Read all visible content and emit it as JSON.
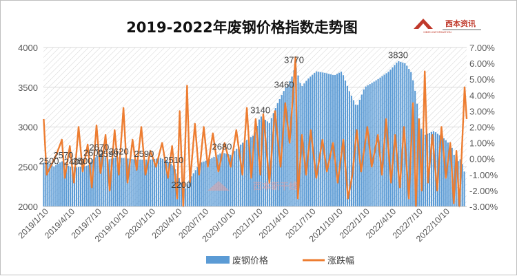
{
  "chart_data": {
    "type": "bar+line",
    "title": "2019-2022年废钢价格指数走势图",
    "y_left": {
      "ylim": [
        2000,
        4000
      ],
      "ticks": [
        2000,
        2500,
        3000,
        3500,
        4000
      ],
      "tick_labels": [
        "2000",
        "2500",
        "3000",
        "3500",
        "4000"
      ]
    },
    "y_right": {
      "ylim": [
        -3.0,
        7.0
      ],
      "ticks": [
        -3,
        -2,
        -1,
        0,
        1,
        2,
        3,
        4,
        5,
        6,
        7
      ],
      "tick_labels": [
        "-3.00%",
        "-2.00%",
        "-1.00%",
        "0.00%",
        "1.00%",
        "2.00%",
        "3.00%",
        "4.00%",
        "5.00%",
        "6.00%",
        "7.00%"
      ]
    },
    "x_range": [
      "2019-01-01",
      "2022-12-15"
    ],
    "x_tick_labels": [
      "2019/1/10",
      "2019/4/10",
      "2019/7/10",
      "2019/10/10",
      "2020/1/10",
      "2020/4/10",
      "2020/7/10",
      "2020/10/10",
      "2021/1/10",
      "2021/4/10",
      "2021/7/10",
      "2021/10/10",
      "2022/1/10",
      "2022/4/10",
      "2022/7/10",
      "2022/10/10"
    ],
    "series": [
      {
        "name": "废钢价格",
        "type": "bar",
        "color": "#5b9bd5",
        "points": [
          [
            "2019-01-02",
            2550
          ],
          [
            "2019-01-15",
            2560
          ],
          [
            "2019-02-05",
            2500
          ],
          [
            "2019-03-05",
            2570
          ],
          [
            "2019-04-01",
            2500
          ],
          [
            "2019-04-20",
            2490
          ],
          [
            "2019-05-15",
            2500
          ],
          [
            "2019-06-05",
            2520
          ],
          [
            "2019-06-20",
            2600
          ],
          [
            "2019-07-15",
            2670
          ],
          [
            "2019-08-10",
            2590
          ],
          [
            "2019-09-05",
            2620
          ],
          [
            "2019-10-01",
            2610
          ],
          [
            "2019-11-15",
            2590
          ],
          [
            "2020-01-01",
            2590
          ],
          [
            "2020-02-05",
            2610
          ],
          [
            "2020-02-25",
            2580
          ],
          [
            "2020-03-20",
            2510
          ],
          [
            "2020-04-15",
            2300
          ],
          [
            "2020-04-25",
            2200
          ],
          [
            "2020-05-20",
            2380
          ],
          [
            "2020-06-20",
            2550
          ],
          [
            "2020-07-25",
            2600
          ],
          [
            "2020-09-01",
            2680
          ],
          [
            "2020-10-01",
            2650
          ],
          [
            "2020-11-10",
            2800
          ],
          [
            "2020-12-20",
            2900
          ],
          [
            "2021-01-10",
            3140
          ],
          [
            "2021-02-10",
            3050
          ],
          [
            "2021-03-10",
            3300
          ],
          [
            "2021-04-01",
            3460
          ],
          [
            "2021-04-25",
            3600
          ],
          [
            "2021-05-10",
            3770
          ],
          [
            "2021-05-30",
            3500
          ],
          [
            "2021-06-20",
            3600
          ],
          [
            "2021-07-20",
            3700
          ],
          [
            "2021-08-20",
            3680
          ],
          [
            "2021-09-20",
            3650
          ],
          [
            "2021-10-15",
            3700
          ],
          [
            "2021-11-10",
            3450
          ],
          [
            "2021-12-05",
            3250
          ],
          [
            "2022-01-01",
            3500
          ],
          [
            "2022-02-15",
            3600
          ],
          [
            "2022-03-25",
            3700
          ],
          [
            "2022-04-25",
            3830
          ],
          [
            "2022-05-20",
            3800
          ],
          [
            "2022-06-10",
            3680
          ],
          [
            "2022-06-25",
            3400
          ],
          [
            "2022-07-10",
            3000
          ],
          [
            "2022-07-25",
            2900
          ],
          [
            "2022-08-25",
            2950
          ],
          [
            "2022-10-01",
            2850
          ],
          [
            "2022-10-25",
            2750
          ],
          [
            "2022-11-10",
            2550
          ],
          [
            "2022-11-25",
            2600
          ],
          [
            "2022-12-10",
            2400
          ]
        ]
      },
      {
        "name": "涨跌幅",
        "type": "line",
        "color": "#ed7d31",
        "points": [
          [
            "2019-01-02",
            2.5
          ],
          [
            "2019-01-12",
            -1.0
          ],
          [
            "2019-02-15",
            0.3
          ],
          [
            "2019-03-05",
            1.2
          ],
          [
            "2019-03-15",
            -1.2
          ],
          [
            "2019-04-01",
            0.8
          ],
          [
            "2019-04-15",
            -1.5
          ],
          [
            "2019-05-01",
            2.0
          ],
          [
            "2019-05-15",
            -0.8
          ],
          [
            "2019-06-01",
            0.9
          ],
          [
            "2019-06-15",
            -1.8
          ],
          [
            "2019-07-01",
            2.1
          ],
          [
            "2019-07-15",
            -0.9
          ],
          [
            "2019-08-01",
            1.5
          ],
          [
            "2019-08-15",
            -2.0
          ],
          [
            "2019-09-01",
            1.8
          ],
          [
            "2019-09-15",
            -1.0
          ],
          [
            "2019-10-01",
            3.2
          ],
          [
            "2019-10-15",
            -1.5
          ],
          [
            "2019-11-01",
            1.2
          ],
          [
            "2019-11-15",
            -0.7
          ],
          [
            "2019-12-01",
            2.0
          ],
          [
            "2019-12-15",
            -1.0
          ],
          [
            "2020-01-01",
            0.5
          ],
          [
            "2020-01-20",
            -0.5
          ],
          [
            "2020-02-10",
            1.0
          ],
          [
            "2020-03-01",
            -1.2
          ],
          [
            "2020-03-15",
            0.8
          ],
          [
            "2020-04-01",
            -2.5
          ],
          [
            "2020-04-10",
            3.0
          ],
          [
            "2020-04-22",
            -3.0
          ],
          [
            "2020-05-05",
            4.6
          ],
          [
            "2020-05-15",
            -1.5
          ],
          [
            "2020-06-01",
            2.2
          ],
          [
            "2020-06-15",
            -1.0
          ],
          [
            "2020-07-01",
            2.0
          ],
          [
            "2020-07-15",
            -0.5
          ],
          [
            "2020-08-01",
            1.6
          ],
          [
            "2020-08-20",
            -0.8
          ],
          [
            "2020-09-10",
            1.0
          ],
          [
            "2020-10-01",
            -0.5
          ],
          [
            "2020-10-20",
            1.8
          ],
          [
            "2020-11-10",
            -1.0
          ],
          [
            "2020-11-25",
            3.2
          ],
          [
            "2020-12-10",
            -1.2
          ],
          [
            "2020-12-25",
            2.5
          ],
          [
            "2021-01-10",
            -1.0
          ],
          [
            "2021-01-20",
            2.8
          ],
          [
            "2021-02-10",
            -1.5
          ],
          [
            "2021-03-01",
            3.0
          ],
          [
            "2021-03-20",
            -0.5
          ],
          [
            "2021-04-05",
            3.5
          ],
          [
            "2021-04-20",
            1.0
          ],
          [
            "2021-05-10",
            6.4
          ],
          [
            "2021-05-18",
            -2.5
          ],
          [
            "2021-06-01",
            1.5
          ],
          [
            "2021-06-15",
            -1.0
          ],
          [
            "2021-07-01",
            1.8
          ],
          [
            "2021-07-20",
            -1.2
          ],
          [
            "2021-08-10",
            1.2
          ],
          [
            "2021-08-25",
            -0.8
          ],
          [
            "2021-09-15",
            1.0
          ],
          [
            "2021-10-01",
            -1.5
          ],
          [
            "2021-10-20",
            1.2
          ],
          [
            "2021-11-05",
            -2.5
          ],
          [
            "2021-11-20",
            -1.0
          ],
          [
            "2021-12-05",
            1.8
          ],
          [
            "2021-12-20",
            -0.8
          ],
          [
            "2022-01-10",
            2.0
          ],
          [
            "2022-01-25",
            -0.5
          ],
          [
            "2022-02-15",
            1.5
          ],
          [
            "2022-03-01",
            -1.0
          ],
          [
            "2022-03-15",
            2.5
          ],
          [
            "2022-04-01",
            -1.5
          ],
          [
            "2022-04-15",
            1.5
          ],
          [
            "2022-05-01",
            -1.8
          ],
          [
            "2022-05-15",
            2.0
          ],
          [
            "2022-06-01",
            -2.5
          ],
          [
            "2022-06-15",
            3.5
          ],
          [
            "2022-06-25",
            -3.0
          ],
          [
            "2022-07-05",
            2.5
          ],
          [
            "2022-07-15",
            -2.0
          ],
          [
            "2022-07-25",
            5.5
          ],
          [
            "2022-08-05",
            -1.5
          ],
          [
            "2022-08-20",
            1.5
          ],
          [
            "2022-09-05",
            -2.0
          ],
          [
            "2022-09-20",
            2.0
          ],
          [
            "2022-10-05",
            -1.2
          ],
          [
            "2022-10-20",
            1.0
          ],
          [
            "2022-11-01",
            -2.8
          ],
          [
            "2022-11-10",
            0.5
          ],
          [
            "2022-11-20",
            -3.0
          ],
          [
            "2022-12-01",
            1.5
          ],
          [
            "2022-12-08",
            4.5
          ],
          [
            "2022-12-15",
            2.5
          ]
        ]
      }
    ],
    "annotations": [
      {
        "date": "2019-01-20",
        "value": 2500,
        "label": "2500"
      },
      {
        "date": "2019-03-10",
        "value": 2570,
        "label": "2570"
      },
      {
        "date": "2019-04-15",
        "value": 2490,
        "label": "2490"
      },
      {
        "date": "2019-05-15",
        "value": 2500,
        "label": "2500"
      },
      {
        "date": "2019-06-20",
        "value": 2600,
        "label": "2600"
      },
      {
        "date": "2019-07-10",
        "value": 2670,
        "label": "2670"
      },
      {
        "date": "2019-08-10",
        "value": 2590,
        "label": "2590"
      },
      {
        "date": "2019-09-15",
        "value": 2620,
        "label": "2620"
      },
      {
        "date": "2019-12-10",
        "value": 2590,
        "label": "2590"
      },
      {
        "date": "2020-03-20",
        "value": 2510,
        "label": "2510"
      },
      {
        "date": "2020-04-15",
        "value": 2200,
        "label": "2200"
      },
      {
        "date": "2020-09-01",
        "value": 2680,
        "label": "2680"
      },
      {
        "date": "2021-01-10",
        "value": 3140,
        "label": "3140"
      },
      {
        "date": "2021-04-01",
        "value": 3460,
        "label": "3460"
      },
      {
        "date": "2021-05-05",
        "value": 3770,
        "label": "3770"
      },
      {
        "date": "2022-04-25",
        "value": 3830,
        "label": "3830"
      }
    ],
    "legend": {
      "placement": "bottom",
      "entries": [
        "废钢价格",
        "涨跌幅"
      ]
    },
    "background": "diagonal-hatch"
  },
  "branding": {
    "logo_text": "西本资讯",
    "logo_subtext": "XIBEN INFORMATION",
    "watermark_text": "西本新干线"
  }
}
